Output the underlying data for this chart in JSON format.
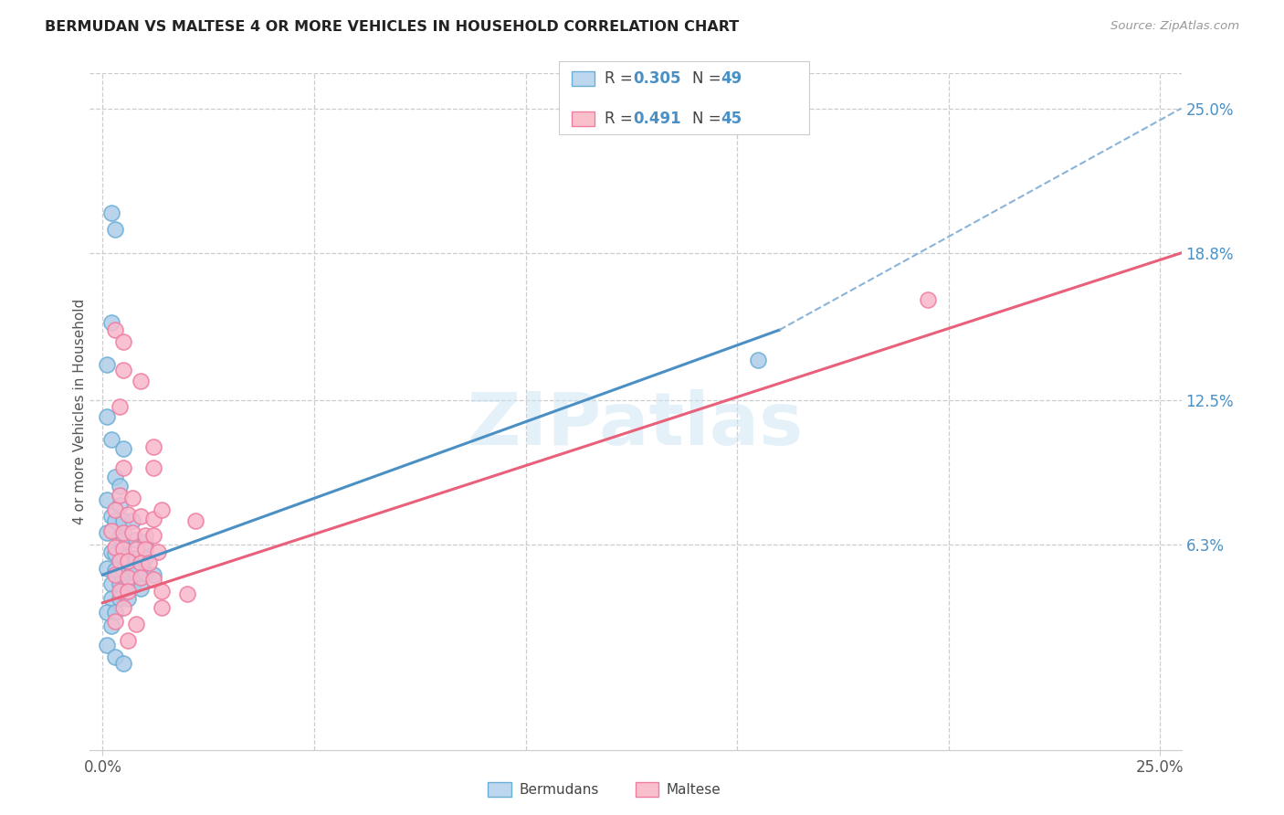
{
  "title": "BERMUDAN VS MALTESE 4 OR MORE VEHICLES IN HOUSEHOLD CORRELATION CHART",
  "source": "Source: ZipAtlas.com",
  "ylabel": "4 or more Vehicles in Household",
  "watermark": "ZIPatlas",
  "xlim": [
    -0.003,
    0.255
  ],
  "ylim": [
    -0.025,
    0.265
  ],
  "xtick_vals": [
    0.0,
    0.25
  ],
  "xtick_labels": [
    "0.0%",
    "25.0%"
  ],
  "ytick_vals_right": [
    0.25,
    0.188,
    0.125,
    0.063
  ],
  "ytick_labels_right": [
    "25.0%",
    "18.8%",
    "12.5%",
    "6.3%"
  ],
  "blue_scatter_face": "#aecde8",
  "blue_scatter_edge": "#6aaed6",
  "pink_scatter_face": "#f9b8cc",
  "pink_scatter_edge": "#f07ca0",
  "blue_line_color": "#4a90c4",
  "pink_line_color": "#e8607a",
  "dashed_line_color": "#8ab4d8",
  "grid_color": "#cccccc",
  "legend_blue_box": "#bdd7ee",
  "legend_pink_box": "#f9c0cc",
  "legend_border": "#cccccc",
  "text_color_dark": "#333333",
  "text_color_blue": "#4a90c4",
  "bermudans_scatter": [
    [
      0.002,
      0.205
    ],
    [
      0.003,
      0.198
    ],
    [
      0.002,
      0.158
    ],
    [
      0.001,
      0.14
    ],
    [
      0.001,
      0.118
    ],
    [
      0.002,
      0.108
    ],
    [
      0.005,
      0.104
    ],
    [
      0.003,
      0.092
    ],
    [
      0.004,
      0.088
    ],
    [
      0.001,
      0.082
    ],
    [
      0.004,
      0.08
    ],
    [
      0.002,
      0.075
    ],
    [
      0.003,
      0.073
    ],
    [
      0.005,
      0.073
    ],
    [
      0.007,
      0.073
    ],
    [
      0.001,
      0.068
    ],
    [
      0.004,
      0.066
    ],
    [
      0.005,
      0.065
    ],
    [
      0.008,
      0.065
    ],
    [
      0.01,
      0.064
    ],
    [
      0.002,
      0.06
    ],
    [
      0.003,
      0.059
    ],
    [
      0.005,
      0.058
    ],
    [
      0.006,
      0.058
    ],
    [
      0.008,
      0.057
    ],
    [
      0.01,
      0.057
    ],
    [
      0.001,
      0.053
    ],
    [
      0.003,
      0.052
    ],
    [
      0.005,
      0.052
    ],
    [
      0.007,
      0.052
    ],
    [
      0.008,
      0.051
    ],
    [
      0.01,
      0.051
    ],
    [
      0.012,
      0.05
    ],
    [
      0.002,
      0.046
    ],
    [
      0.004,
      0.046
    ],
    [
      0.006,
      0.045
    ],
    [
      0.007,
      0.045
    ],
    [
      0.009,
      0.044
    ],
    [
      0.002,
      0.04
    ],
    [
      0.004,
      0.04
    ],
    [
      0.006,
      0.04
    ],
    [
      0.001,
      0.034
    ],
    [
      0.003,
      0.034
    ],
    [
      0.002,
      0.028
    ],
    [
      0.001,
      0.02
    ],
    [
      0.003,
      0.015
    ],
    [
      0.005,
      0.012
    ],
    [
      0.155,
      0.142
    ]
  ],
  "maltese_scatter": [
    [
      0.003,
      0.155
    ],
    [
      0.005,
      0.15
    ],
    [
      0.005,
      0.138
    ],
    [
      0.009,
      0.133
    ],
    [
      0.004,
      0.122
    ],
    [
      0.012,
      0.105
    ],
    [
      0.005,
      0.096
    ],
    [
      0.012,
      0.096
    ],
    [
      0.004,
      0.084
    ],
    [
      0.007,
      0.083
    ],
    [
      0.003,
      0.078
    ],
    [
      0.006,
      0.076
    ],
    [
      0.009,
      0.075
    ],
    [
      0.012,
      0.074
    ],
    [
      0.002,
      0.069
    ],
    [
      0.005,
      0.068
    ],
    [
      0.007,
      0.068
    ],
    [
      0.01,
      0.067
    ],
    [
      0.012,
      0.067
    ],
    [
      0.003,
      0.062
    ],
    [
      0.005,
      0.061
    ],
    [
      0.008,
      0.061
    ],
    [
      0.01,
      0.061
    ],
    [
      0.013,
      0.06
    ],
    [
      0.004,
      0.056
    ],
    [
      0.006,
      0.056
    ],
    [
      0.009,
      0.055
    ],
    [
      0.011,
      0.055
    ],
    [
      0.003,
      0.05
    ],
    [
      0.006,
      0.049
    ],
    [
      0.009,
      0.049
    ],
    [
      0.012,
      0.048
    ],
    [
      0.004,
      0.043
    ],
    [
      0.006,
      0.043
    ],
    [
      0.014,
      0.043
    ],
    [
      0.02,
      0.042
    ],
    [
      0.005,
      0.036
    ],
    [
      0.014,
      0.036
    ],
    [
      0.003,
      0.03
    ],
    [
      0.008,
      0.029
    ],
    [
      0.006,
      0.022
    ],
    [
      0.195,
      0.168
    ],
    [
      0.014,
      0.078
    ],
    [
      0.022,
      0.073
    ]
  ],
  "blue_solid_line": [
    [
      0.0,
      0.05
    ],
    [
      0.16,
      0.155
    ]
  ],
  "blue_dashed_line": [
    [
      0.0,
      0.05
    ],
    [
      0.255,
      0.25
    ]
  ],
  "pink_solid_line": [
    [
      0.0,
      0.038
    ],
    [
      0.255,
      0.188
    ]
  ],
  "background_color": "#ffffff"
}
